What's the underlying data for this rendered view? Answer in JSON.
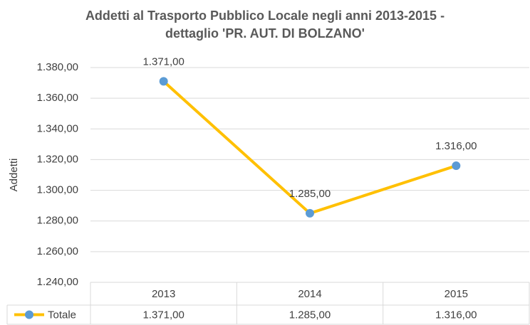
{
  "chart_data": {
    "type": "line",
    "title_lines": [
      "Addetti al Trasporto Pubblico Locale negli anni 2013-2015 -",
      "dettaglio 'PR. AUT. DI BOLZANO'"
    ],
    "y_label": "Addetti",
    "categories": [
      "2013",
      "2014",
      "2015"
    ],
    "series": [
      {
        "name": "Totale",
        "color": "#ffc000",
        "marker_color": "#5b9bd5",
        "values": [
          1371,
          1285,
          1316
        ],
        "value_labels": [
          "1.371,00",
          "1.285,00",
          "1.316,00"
        ]
      }
    ],
    "ylim": [
      1240,
      1380
    ],
    "yticks": [
      {
        "value": 1240,
        "label": "1.240,00"
      },
      {
        "value": 1260,
        "label": "1.260,00"
      },
      {
        "value": 1280,
        "label": "1.280,00"
      },
      {
        "value": 1300,
        "label": "1.300,00"
      },
      {
        "value": 1320,
        "label": "1.320,00"
      },
      {
        "value": 1340,
        "label": "1.340,00"
      },
      {
        "value": 1360,
        "label": "1.360,00"
      },
      {
        "value": 1380,
        "label": "1.380,00"
      }
    ],
    "grid": true,
    "data_table": true
  }
}
